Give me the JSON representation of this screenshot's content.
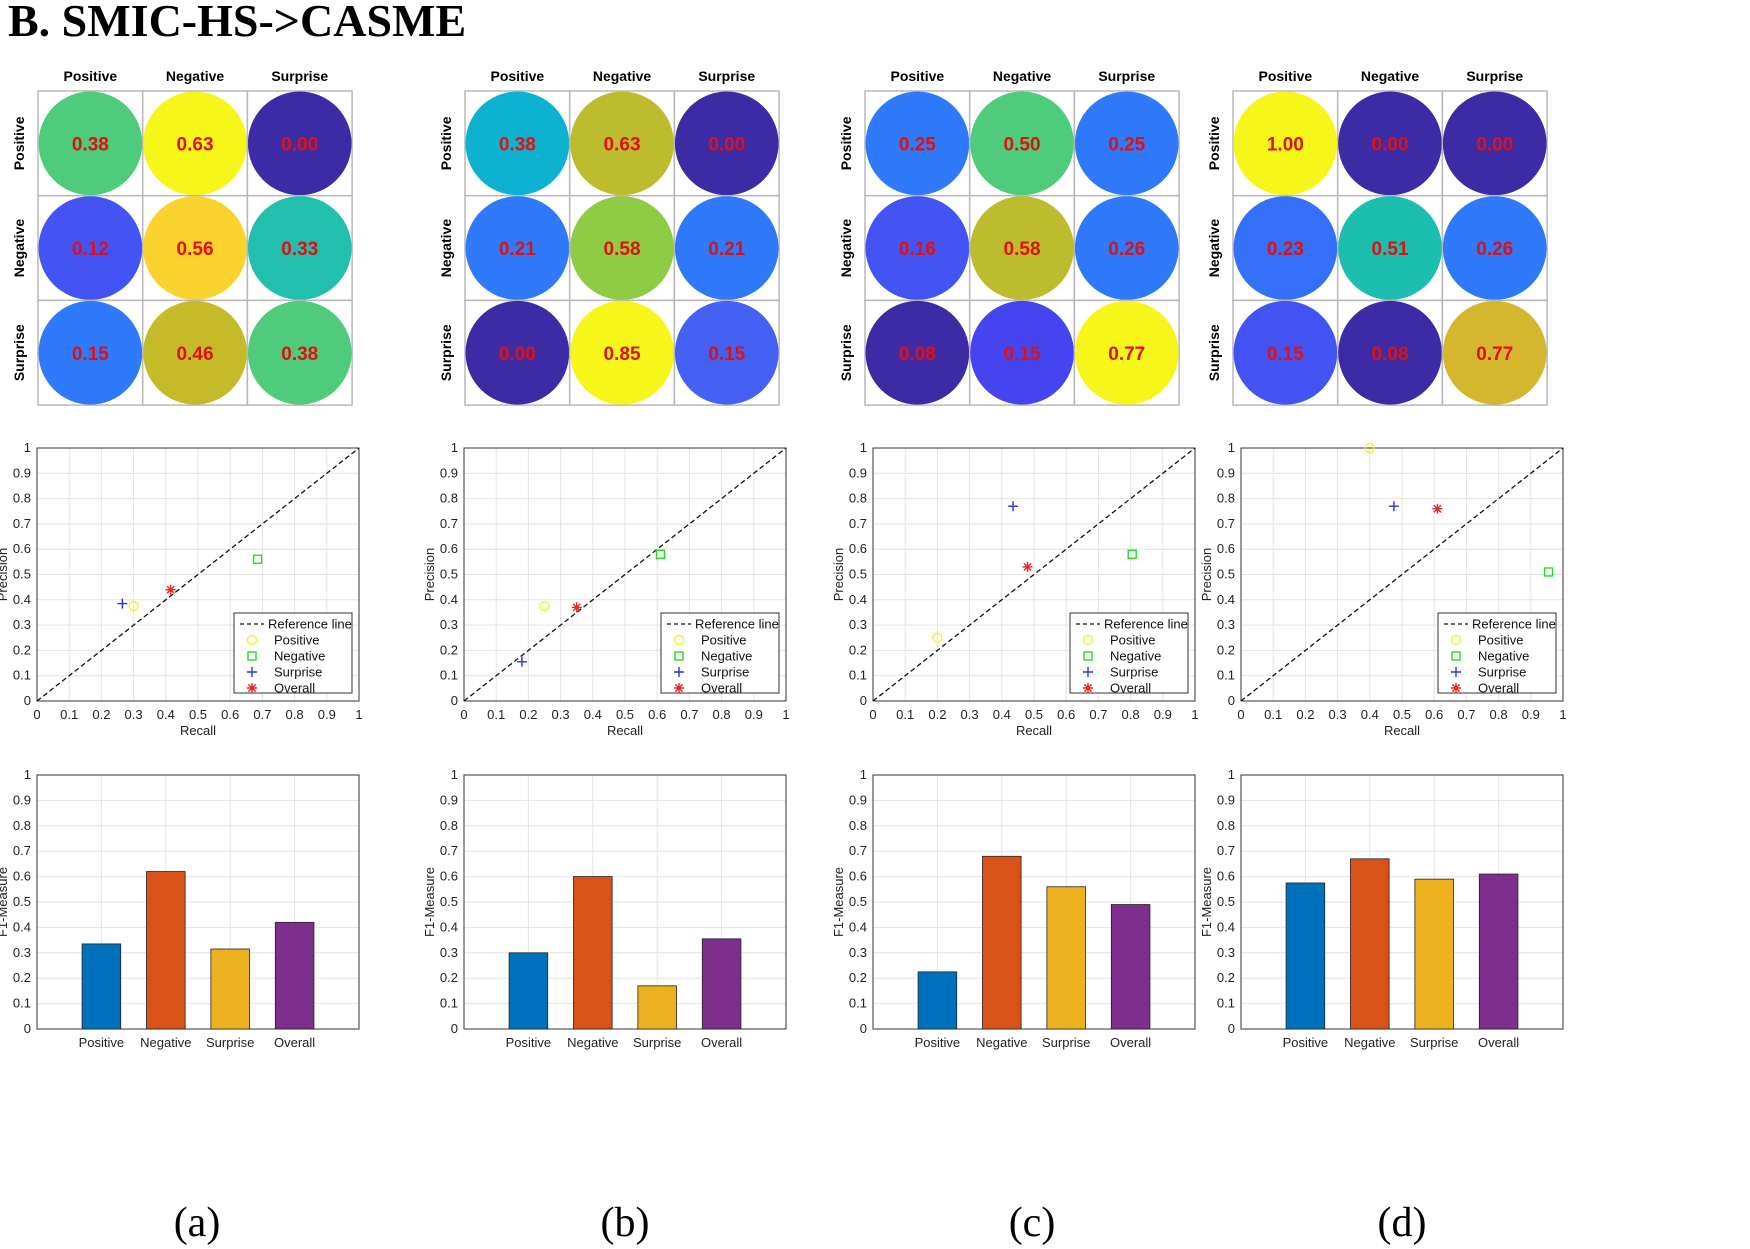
{
  "figure_title": "B. SMIC-HS->CASME",
  "classes": [
    "Positive",
    "Negative",
    "Surprise"
  ],
  "chart_data": [
    {
      "type": "heatmap",
      "panel": "(a)",
      "row_labels": [
        "Positive",
        "Negative",
        "Surprise"
      ],
      "col_labels": [
        "Positive",
        "Negative",
        "Surprise"
      ],
      "values": [
        [
          0.38,
          0.63,
          0.0
        ],
        [
          0.12,
          0.56,
          0.33
        ],
        [
          0.15,
          0.46,
          0.38
        ]
      ],
      "labels": [
        [
          "0.38",
          "0.63",
          "0.00"
        ],
        [
          "0.12",
          "0.56",
          "0.33"
        ],
        [
          "0.15",
          "0.46",
          "0.38"
        ]
      ],
      "colors": [
        [
          "#4fcb7c",
          "#f6f61a",
          "#3d2ba6"
        ],
        [
          "#4353f4",
          "#fad32f",
          "#22bfad"
        ],
        [
          "#2e7afa",
          "#c5bb29",
          "#4fcb7c"
        ]
      ]
    },
    {
      "type": "heatmap",
      "panel": "(b)",
      "row_labels": [
        "Positive",
        "Negative",
        "Surprise"
      ],
      "col_labels": [
        "Positive",
        "Negative",
        "Surprise"
      ],
      "values": [
        [
          0.38,
          0.63,
          0.0
        ],
        [
          0.21,
          0.58,
          0.21
        ],
        [
          0.0,
          0.85,
          0.15
        ]
      ],
      "labels": [
        [
          "0.38",
          "0.63",
          "0.00"
        ],
        [
          "0.21",
          "0.58",
          "0.21"
        ],
        [
          "0.00",
          "0.85",
          "0.15"
        ]
      ],
      "colors": [
        [
          "#0cb2cf",
          "#bdbc2e",
          "#3d2ba6"
        ],
        [
          "#2e7afa",
          "#8dcc44",
          "#2e7afa"
        ],
        [
          "#3d2ba6",
          "#f6f61a",
          "#4461f4"
        ]
      ]
    },
    {
      "type": "heatmap",
      "panel": "(c)",
      "row_labels": [
        "Positive",
        "Negative",
        "Surprise"
      ],
      "col_labels": [
        "Positive",
        "Negative",
        "Surprise"
      ],
      "values": [
        [
          0.25,
          0.5,
          0.25
        ],
        [
          0.16,
          0.58,
          0.26
        ],
        [
          0.08,
          0.15,
          0.77
        ]
      ],
      "labels": [
        [
          "0.25",
          "0.50",
          "0.25"
        ],
        [
          "0.16",
          "0.58",
          "0.26"
        ],
        [
          "0.08",
          "0.15",
          "0.77"
        ]
      ],
      "colors": [
        [
          "#2e7afa",
          "#4fcb7c",
          "#2e7afa"
        ],
        [
          "#4353f4",
          "#bdbc2e",
          "#2e7afa"
        ],
        [
          "#3d2ba6",
          "#4545f0",
          "#f6f61a"
        ]
      ]
    },
    {
      "type": "heatmap",
      "panel": "(d)",
      "row_labels": [
        "Positive",
        "Negative",
        "Surprise"
      ],
      "col_labels": [
        "Positive",
        "Negative",
        "Surprise"
      ],
      "values": [
        [
          1.0,
          0.0,
          0.0
        ],
        [
          0.23,
          0.51,
          0.26
        ],
        [
          0.15,
          0.08,
          0.77
        ]
      ],
      "labels": [
        [
          "1.00",
          "0.00",
          "0.00"
        ],
        [
          "0.23",
          "0.51",
          "0.26"
        ],
        [
          "0.15",
          "0.08",
          "0.77"
        ]
      ],
      "colors": [
        [
          "#f6f61a",
          "#3d2ba6",
          "#3d2ba6"
        ],
        [
          "#3571f8",
          "#1cbeb0",
          "#2e7afa"
        ],
        [
          "#4353f4",
          "#3d2ba6",
          "#d4b72c"
        ]
      ]
    },
    {
      "type": "scatter",
      "panel": "(a)",
      "xlabel": "Recall",
      "ylabel": "Precision",
      "xlim": [
        0,
        1
      ],
      "ylim": [
        0,
        1
      ],
      "ticks": [
        "0",
        "0.1",
        "0.2",
        "0.3",
        "0.4",
        "0.5",
        "0.6",
        "0.7",
        "0.8",
        "0.9",
        "1"
      ],
      "reference_line": "y = x",
      "points": [
        {
          "name": "Positive",
          "x": 0.3,
          "y": 0.375
        },
        {
          "name": "Negative",
          "x": 0.685,
          "y": 0.56
        },
        {
          "name": "Surprise",
          "x": 0.265,
          "y": 0.385
        },
        {
          "name": "Overall",
          "x": 0.415,
          "y": 0.44
        }
      ],
      "legend": [
        "Reference line",
        "Positive",
        "Negative",
        "Surprise",
        "Overall"
      ],
      "legend_position": "bottom-right"
    },
    {
      "type": "scatter",
      "panel": "(b)",
      "xlabel": "Recall",
      "ylabel": "Precision",
      "xlim": [
        0,
        1
      ],
      "ylim": [
        0,
        1
      ],
      "ticks": [
        "0",
        "0.1",
        "0.2",
        "0.3",
        "0.4",
        "0.5",
        "0.6",
        "0.7",
        "0.8",
        "0.9",
        "1"
      ],
      "reference_line": "y = x",
      "points": [
        {
          "name": "Positive",
          "x": 0.25,
          "y": 0.375
        },
        {
          "name": "Negative",
          "x": 0.61,
          "y": 0.58
        },
        {
          "name": "Surprise",
          "x": 0.18,
          "y": 0.155
        },
        {
          "name": "Overall",
          "x": 0.35,
          "y": 0.37
        }
      ],
      "legend": [
        "Reference line",
        "Positive",
        "Negative",
        "Surprise",
        "Overall"
      ],
      "legend_position": "bottom-right"
    },
    {
      "type": "scatter",
      "panel": "(c)",
      "xlabel": "Recall",
      "ylabel": "Precision",
      "xlim": [
        0,
        1
      ],
      "ylim": [
        0,
        1
      ],
      "ticks": [
        "0",
        "0.1",
        "0.2",
        "0.3",
        "0.4",
        "0.5",
        "0.6",
        "0.7",
        "0.8",
        "0.9",
        "1"
      ],
      "reference_line": "y = x",
      "points": [
        {
          "name": "Positive",
          "x": 0.2,
          "y": 0.25
        },
        {
          "name": "Negative",
          "x": 0.805,
          "y": 0.58
        },
        {
          "name": "Surprise",
          "x": 0.435,
          "y": 0.77
        },
        {
          "name": "Overall",
          "x": 0.48,
          "y": 0.53
        }
      ],
      "legend": [
        "Reference line",
        "Positive",
        "Negative",
        "Surprise",
        "Overall"
      ],
      "legend_position": "bottom-right"
    },
    {
      "type": "scatter",
      "panel": "(d)",
      "xlabel": "Recall",
      "ylabel": "Precision",
      "xlim": [
        0,
        1
      ],
      "ylim": [
        0,
        1
      ],
      "ticks": [
        "0",
        "0.1",
        "0.2",
        "0.3",
        "0.4",
        "0.5",
        "0.6",
        "0.7",
        "0.8",
        "0.9",
        "1"
      ],
      "reference_line": "y = x",
      "points": [
        {
          "name": "Positive",
          "x": 0.4,
          "y": 1.0
        },
        {
          "name": "Negative",
          "x": 0.955,
          "y": 0.51
        },
        {
          "name": "Surprise",
          "x": 0.475,
          "y": 0.77
        },
        {
          "name": "Overall",
          "x": 0.61,
          "y": 0.76
        }
      ],
      "legend": [
        "Reference line",
        "Positive",
        "Negative",
        "Surprise",
        "Overall"
      ],
      "legend_position": "bottom-right"
    },
    {
      "type": "bar",
      "panel": "(a)",
      "ylabel": "F1-Measure",
      "ylim": [
        0,
        1
      ],
      "yticks": [
        "0",
        "0.1",
        "0.2",
        "0.3",
        "0.4",
        "0.5",
        "0.6",
        "0.7",
        "0.8",
        "0.9",
        "1"
      ],
      "categories": [
        "Positive",
        "Negative",
        "Surprise",
        "Overall"
      ],
      "values": [
        0.335,
        0.62,
        0.315,
        0.42
      ]
    },
    {
      "type": "bar",
      "panel": "(b)",
      "ylabel": "F1-Measure",
      "ylim": [
        0,
        1
      ],
      "yticks": [
        "0",
        "0.1",
        "0.2",
        "0.3",
        "0.4",
        "0.5",
        "0.6",
        "0.7",
        "0.8",
        "0.9",
        "1"
      ],
      "categories": [
        "Positive",
        "Negative",
        "Surprise",
        "Overall"
      ],
      "values": [
        0.3,
        0.6,
        0.17,
        0.355
      ]
    },
    {
      "type": "bar",
      "panel": "(c)",
      "ylabel": "F1-Measure",
      "ylim": [
        0,
        1
      ],
      "yticks": [
        "0",
        "0.1",
        "0.2",
        "0.3",
        "0.4",
        "0.5",
        "0.6",
        "0.7",
        "0.8",
        "0.9",
        "1"
      ],
      "categories": [
        "Positive",
        "Negative",
        "Surprise",
        "Overall"
      ],
      "values": [
        0.225,
        0.68,
        0.56,
        0.49
      ]
    },
    {
      "type": "bar",
      "panel": "(d)",
      "ylabel": "F1-Measure",
      "ylim": [
        0,
        1
      ],
      "yticks": [
        "0",
        "0.1",
        "0.2",
        "0.3",
        "0.4",
        "0.5",
        "0.6",
        "0.7",
        "0.8",
        "0.9",
        "1"
      ],
      "categories": [
        "Positive",
        "Negative",
        "Surprise",
        "Overall"
      ],
      "values": [
        0.575,
        0.67,
        0.59,
        0.61
      ]
    }
  ],
  "panel_labels": [
    "(a)",
    "(b)",
    "(c)",
    "(d)"
  ],
  "colors": {
    "series": {
      "Positive": "#0072bd",
      "Negative": "#d95319",
      "Surprise": "#edb120",
      "Overall": "#7e2f8e"
    },
    "markers": {
      "Positive": "#f2f22a",
      "Negative": "#22dd22",
      "Surprise": "#2233ee",
      "Overall": "#ee2222"
    },
    "cell_text": "#e01010",
    "grid": "#e4e4e4"
  }
}
